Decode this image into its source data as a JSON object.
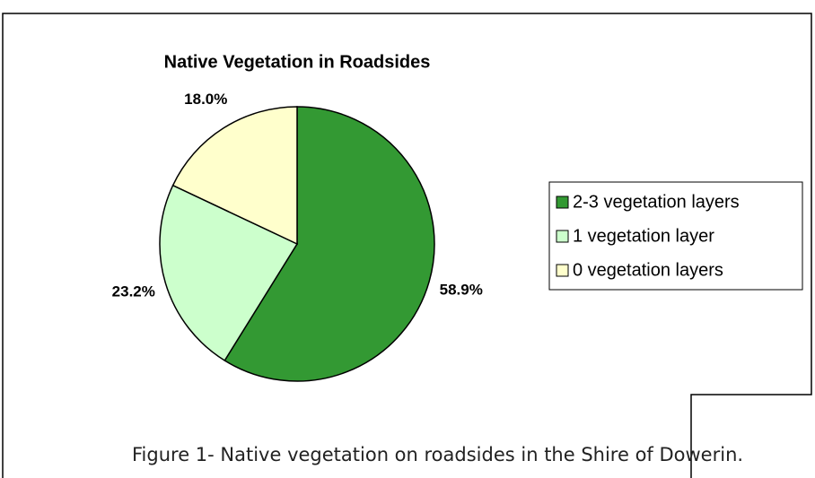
{
  "chart_data": {
    "type": "pie",
    "title": "Native Vegetation in Roadsides",
    "categories": [
      "2-3 vegetation layers",
      "1 vegetation layer",
      "0 vegetation layers"
    ],
    "values": [
      58.9,
      23.2,
      18.0
    ],
    "value_labels": [
      "58.9%",
      "23.2%",
      "18.0%"
    ],
    "colors": [
      "#339933",
      "#ccffcc",
      "#ffffcc"
    ],
    "legend": "right",
    "caption": "Figure 1- Native vegetation on roadsides in the Shire of Dowerin."
  }
}
